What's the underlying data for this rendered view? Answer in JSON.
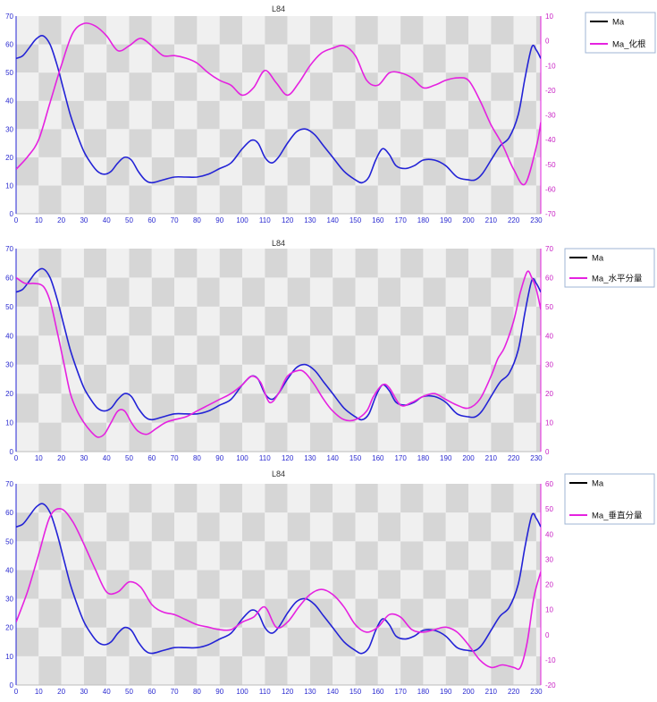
{
  "colors": {
    "primary_series": "#2323d6",
    "secondary_series": "#e522e0",
    "band_dark": "#d6d6d6",
    "band_light": "#f0f0f0",
    "legend_primary_swatch": "#000000"
  },
  "chart_data": [
    {
      "type": "line",
      "title": "L84",
      "xlabel": "",
      "ylabel": "",
      "xlim": [
        0,
        232
      ],
      "x_ticks": [
        0,
        10,
        20,
        30,
        40,
        50,
        60,
        70,
        80,
        90,
        100,
        110,
        120,
        130,
        140,
        150,
        160,
        170,
        180,
        190,
        200,
        210,
        220,
        230
      ],
      "ylim_left": [
        0,
        70
      ],
      "y_ticks_left": [
        0,
        10,
        20,
        30,
        40,
        50,
        60,
        70
      ],
      "ylim_right": [
        -70,
        10
      ],
      "y_ticks_right": [
        -70,
        -60,
        -50,
        -40,
        -30,
        -20,
        -10,
        0,
        10
      ],
      "grid": true,
      "legend_position": "top-right",
      "series": [
        {
          "name": "Ma",
          "axis": "left",
          "x": [
            0,
            3,
            6,
            9,
            12,
            15,
            18,
            21,
            24,
            27,
            30,
            33,
            36,
            39,
            42,
            45,
            48,
            51,
            54,
            57,
            60,
            65,
            70,
            75,
            80,
            85,
            90,
            95,
            100,
            104,
            107,
            110,
            113,
            116,
            120,
            124,
            128,
            132,
            136,
            140,
            145,
            150,
            153,
            156,
            159,
            162,
            165,
            168,
            172,
            176,
            180,
            185,
            190,
            195,
            200,
            203,
            206,
            210,
            214,
            218,
            222,
            225,
            228,
            230,
            232
          ],
          "y": [
            55,
            56,
            59,
            62,
            63,
            60,
            53,
            44,
            35,
            28,
            22,
            18,
            15,
            14,
            15,
            18,
            20,
            19,
            15,
            12,
            11,
            12,
            13,
            13,
            13,
            14,
            16,
            18,
            23,
            26,
            25,
            20,
            18,
            20,
            25,
            29,
            30,
            28,
            24,
            20,
            15,
            12,
            11,
            13,
            19,
            23,
            21,
            17,
            16,
            17,
            19,
            19,
            17,
            13,
            12,
            12,
            14,
            19,
            24,
            27,
            35,
            48,
            59,
            58,
            55
          ]
        },
        {
          "name": "Ma_化根",
          "axis": "right",
          "x": [
            0,
            5,
            10,
            15,
            20,
            25,
            30,
            35,
            40,
            45,
            50,
            55,
            60,
            65,
            70,
            75,
            80,
            85,
            90,
            95,
            100,
            105,
            110,
            115,
            120,
            125,
            130,
            135,
            140,
            145,
            150,
            155,
            160,
            165,
            170,
            175,
            180,
            185,
            190,
            195,
            200,
            205,
            210,
            215,
            220,
            225,
            230,
            232
          ],
          "y": [
            -52,
            -47,
            -40,
            -25,
            -10,
            3,
            7,
            6,
            2,
            -4,
            -2,
            1,
            -2,
            -6,
            -6,
            -7,
            -9,
            -13,
            -16,
            -18,
            -22,
            -19,
            -12,
            -17,
            -22,
            -17,
            -10,
            -5,
            -3,
            -2,
            -6,
            -16,
            -18,
            -13,
            -13,
            -15,
            -19,
            -18,
            -16,
            -15,
            -16,
            -24,
            -34,
            -42,
            -52,
            -58,
            -43,
            -33
          ]
        }
      ]
    },
    {
      "type": "line",
      "title": "L84",
      "xlabel": "",
      "ylabel": "",
      "xlim": [
        0,
        232
      ],
      "x_ticks": [
        0,
        10,
        20,
        30,
        40,
        50,
        60,
        70,
        80,
        90,
        100,
        110,
        120,
        130,
        140,
        150,
        160,
        170,
        180,
        190,
        200,
        210,
        220,
        230
      ],
      "ylim_left": [
        0,
        70
      ],
      "y_ticks_left": [
        0,
        10,
        20,
        30,
        40,
        50,
        60,
        70
      ],
      "ylim_right": [
        0,
        70
      ],
      "y_ticks_right": [
        0,
        10,
        20,
        30,
        40,
        50,
        60,
        70
      ],
      "grid": true,
      "legend_position": "top-right",
      "series": [
        {
          "name": "Ma",
          "axis": "left",
          "x": [
            0,
            3,
            6,
            9,
            12,
            15,
            18,
            21,
            24,
            27,
            30,
            33,
            36,
            39,
            42,
            45,
            48,
            51,
            54,
            57,
            60,
            65,
            70,
            75,
            80,
            85,
            90,
            95,
            100,
            104,
            107,
            110,
            113,
            116,
            120,
            124,
            128,
            132,
            136,
            140,
            145,
            150,
            153,
            156,
            159,
            162,
            165,
            168,
            172,
            176,
            180,
            185,
            190,
            195,
            200,
            203,
            206,
            210,
            214,
            218,
            222,
            225,
            228,
            230,
            232
          ],
          "y": [
            55,
            56,
            59,
            62,
            63,
            60,
            53,
            44,
            35,
            28,
            22,
            18,
            15,
            14,
            15,
            18,
            20,
            19,
            15,
            12,
            11,
            12,
            13,
            13,
            13,
            14,
            16,
            18,
            23,
            26,
            25,
            20,
            18,
            20,
            25,
            29,
            30,
            28,
            24,
            20,
            15,
            12,
            11,
            13,
            19,
            23,
            21,
            17,
            16,
            17,
            19,
            19,
            17,
            13,
            12,
            12,
            14,
            19,
            24,
            27,
            35,
            48,
            59,
            58,
            55
          ]
        },
        {
          "name": "Ma_水平分量",
          "axis": "right",
          "x": [
            0,
            4,
            8,
            12,
            15,
            18,
            21,
            24,
            27,
            30,
            33,
            36,
            39,
            42,
            45,
            48,
            51,
            54,
            58,
            62,
            66,
            70,
            75,
            80,
            85,
            90,
            95,
            100,
            104,
            108,
            112,
            116,
            120,
            125,
            128,
            132,
            136,
            140,
            145,
            150,
            155,
            158,
            162,
            165,
            170,
            175,
            180,
            185,
            190,
            195,
            200,
            205,
            210,
            213,
            216,
            220,
            223,
            226,
            228,
            230,
            232
          ],
          "y": [
            60,
            58,
            58,
            57,
            52,
            42,
            31,
            20,
            14,
            10,
            7,
            5,
            6,
            10,
            14,
            14,
            10,
            7,
            6,
            8,
            10,
            11,
            12,
            14,
            16,
            18,
            20,
            23,
            26,
            24,
            17,
            20,
            26,
            28,
            27,
            23,
            18,
            14,
            11,
            11,
            14,
            19,
            23,
            22,
            16,
            17,
            19,
            20,
            18,
            16,
            15,
            18,
            26,
            32,
            36,
            45,
            55,
            62,
            60,
            56,
            49
          ]
        }
      ]
    },
    {
      "type": "line",
      "title": "L84",
      "xlabel": "",
      "ylabel": "",
      "xlim": [
        0,
        232
      ],
      "x_ticks": [
        0,
        10,
        20,
        30,
        40,
        50,
        60,
        70,
        80,
        90,
        100,
        110,
        120,
        130,
        140,
        150,
        160,
        170,
        180,
        190,
        200,
        210,
        220,
        230
      ],
      "ylim_left": [
        0,
        70
      ],
      "y_ticks_left": [
        0,
        10,
        20,
        30,
        40,
        50,
        60,
        70
      ],
      "ylim_right": [
        -20,
        60
      ],
      "y_ticks_right": [
        -20,
        -10,
        0,
        10,
        20,
        30,
        40,
        50,
        60
      ],
      "grid": true,
      "legend_position": "top-right",
      "series": [
        {
          "name": "Ma",
          "axis": "left",
          "x": [
            0,
            3,
            6,
            9,
            12,
            15,
            18,
            21,
            24,
            27,
            30,
            33,
            36,
            39,
            42,
            45,
            48,
            51,
            54,
            57,
            60,
            65,
            70,
            75,
            80,
            85,
            90,
            95,
            100,
            104,
            107,
            110,
            113,
            116,
            120,
            124,
            128,
            132,
            136,
            140,
            145,
            150,
            153,
            156,
            159,
            162,
            165,
            168,
            172,
            176,
            180,
            185,
            190,
            195,
            200,
            203,
            206,
            210,
            214,
            218,
            222,
            225,
            228,
            230,
            232
          ],
          "y": [
            55,
            56,
            59,
            62,
            63,
            60,
            53,
            44,
            35,
            28,
            22,
            18,
            15,
            14,
            15,
            18,
            20,
            19,
            15,
            12,
            11,
            12,
            13,
            13,
            13,
            14,
            16,
            18,
            23,
            26,
            25,
            20,
            18,
            20,
            25,
            29,
            30,
            28,
            24,
            20,
            15,
            12,
            11,
            13,
            19,
            23,
            21,
            17,
            16,
            17,
            19,
            19,
            17,
            13,
            12,
            12,
            14,
            19,
            24,
            27,
            35,
            48,
            59,
            58,
            55
          ]
        },
        {
          "name": "Ma_垂直分量",
          "axis": "right",
          "x": [
            0,
            5,
            10,
            15,
            20,
            25,
            30,
            35,
            40,
            45,
            50,
            55,
            60,
            65,
            70,
            75,
            80,
            85,
            90,
            95,
            100,
            105,
            110,
            115,
            120,
            125,
            130,
            135,
            140,
            145,
            150,
            155,
            160,
            165,
            170,
            175,
            180,
            185,
            190,
            195,
            200,
            205,
            210,
            215,
            220,
            223,
            226,
            229,
            232
          ],
          "y": [
            5,
            17,
            32,
            47,
            50,
            45,
            36,
            26,
            17,
            17,
            21,
            19,
            12,
            9,
            8,
            6,
            4,
            3,
            2,
            2,
            5,
            7,
            11,
            3,
            5,
            11,
            16,
            18,
            16,
            11,
            4,
            1,
            3,
            8,
            7,
            2,
            1,
            2,
            3,
            1,
            -4,
            -10,
            -13,
            -12,
            -13,
            -13,
            -3,
            15,
            25
          ]
        }
      ]
    }
  ]
}
